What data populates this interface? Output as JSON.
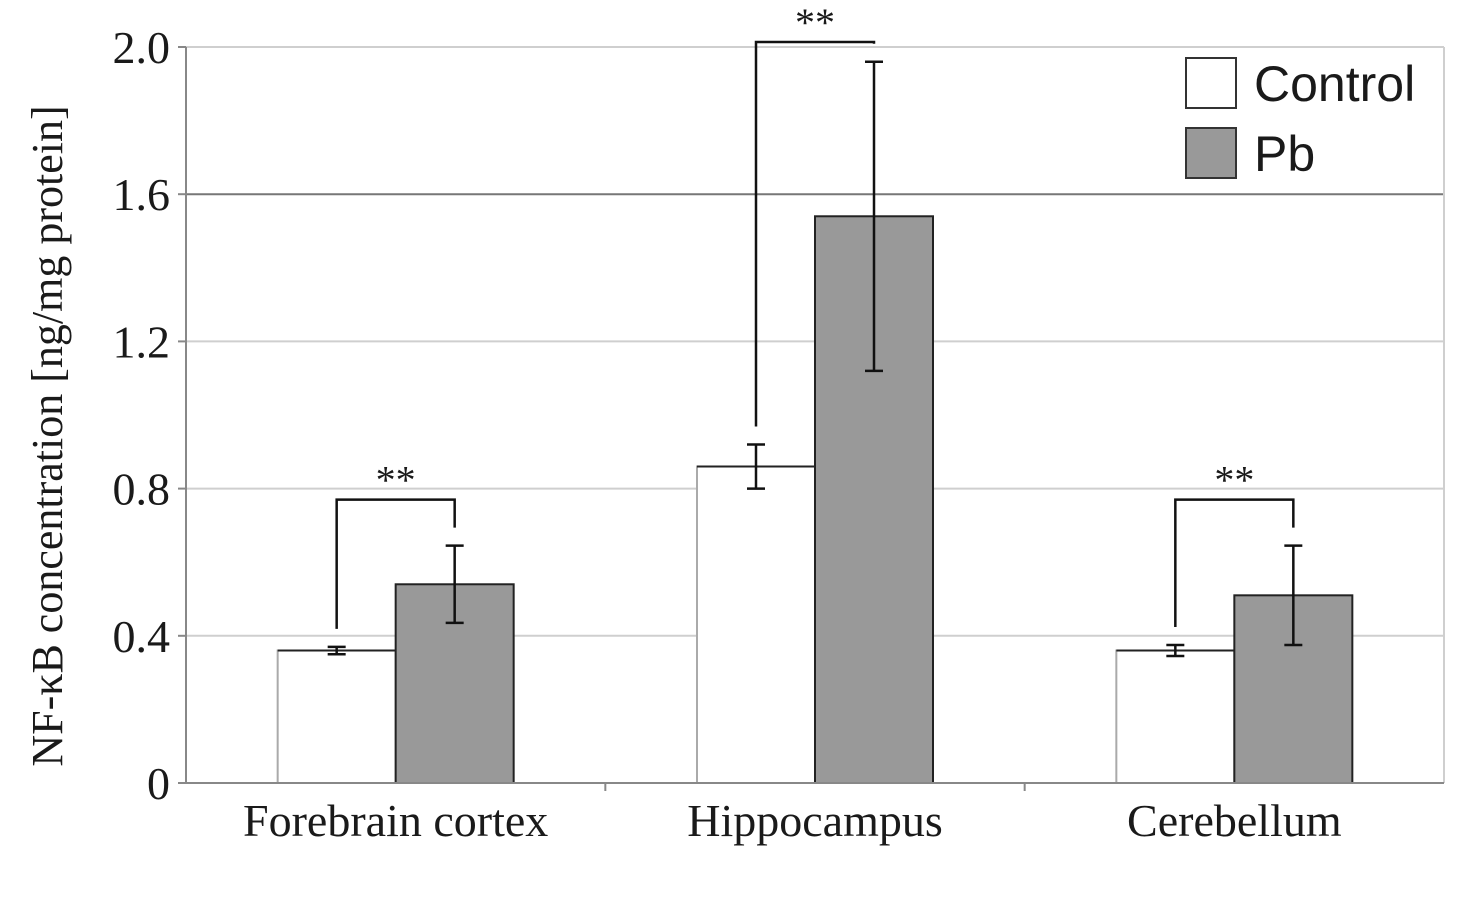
{
  "chart_data": {
    "type": "bar",
    "ylabel": "NF-κB concentration [ng/mg protein]",
    "xlabel": "",
    "ylim": [
      0,
      2.0
    ],
    "yticks": [
      0,
      0.4,
      0.8,
      1.2,
      1.6,
      2.0
    ],
    "ytick_labels": [
      "0",
      "0.4",
      "0.8",
      "1.2",
      "1.6",
      "2.0"
    ],
    "grid": true,
    "legend_position": "top-right",
    "categories": [
      "Forebrain cortex",
      "Hippocampus",
      "Cerebellum"
    ],
    "series": [
      {
        "name": "Control",
        "color": "#ffffff",
        "values": [
          0.36,
          0.86,
          0.36
        ],
        "errors": [
          0.01,
          0.06,
          0.015
        ]
      },
      {
        "name": "Pb",
        "color": "#999999",
        "values": [
          0.54,
          1.54,
          0.51
        ],
        "errors": [
          0.105,
          0.42,
          0.135
        ]
      }
    ],
    "significance": [
      {
        "category": 0,
        "label": "**"
      },
      {
        "category": 1,
        "label": "**"
      },
      {
        "category": 2,
        "label": "**"
      }
    ]
  }
}
